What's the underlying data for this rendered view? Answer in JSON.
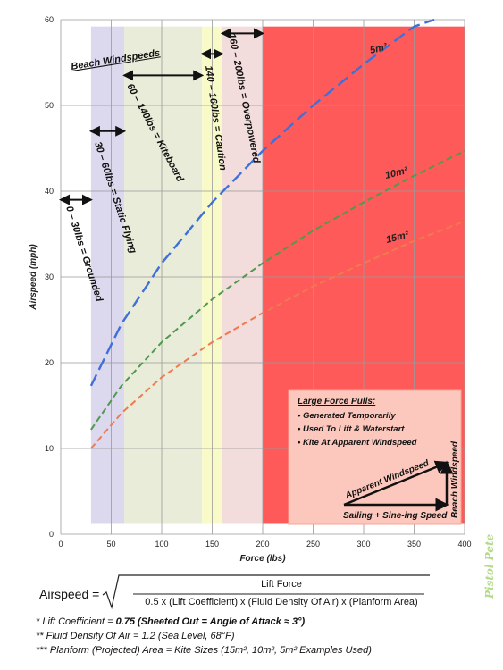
{
  "chart_data": {
    "type": "line",
    "xlabel": "Force (lbs)",
    "ylabel": "Airspeed (mph)",
    "xlim": [
      0,
      400
    ],
    "ylim": [
      0,
      60
    ],
    "xticks": [
      0,
      50,
      100,
      150,
      200,
      250,
      300,
      350,
      400
    ],
    "yticks": [
      0,
      10,
      20,
      30,
      40,
      50,
      60
    ],
    "grid": true,
    "series": [
      {
        "name": "5m²",
        "color": "#3f6fd8",
        "x": [
          30,
          60,
          100,
          150,
          200,
          250,
          300,
          350,
          370
        ],
        "y": [
          17.3,
          24.5,
          31.6,
          38.7,
          44.7,
          50.0,
          54.8,
          59.2,
          60.0
        ]
      },
      {
        "name": "10m²",
        "color": "#4f9a4f",
        "x": [
          30,
          60,
          100,
          150,
          200,
          250,
          300,
          350,
          400
        ],
        "y": [
          12.2,
          17.3,
          22.4,
          27.4,
          31.6,
          35.4,
          38.7,
          41.8,
          44.7
        ]
      },
      {
        "name": "15m²",
        "color": "#f07a50",
        "x": [
          30,
          60,
          100,
          150,
          200,
          250,
          300,
          350,
          400
        ],
        "y": [
          10.0,
          14.1,
          18.3,
          22.4,
          25.8,
          28.9,
          31.6,
          34.2,
          36.5
        ]
      }
    ],
    "zones": [
      {
        "label": "0 – 30lbs = Grounded",
        "x_min": 0,
        "x_max": 30,
        "color": ""
      },
      {
        "label": "30 – 60lbs = Static Flying",
        "x_min": 30,
        "x_max": 63,
        "color": "#dcd8ee"
      },
      {
        "label": "60 – 140lbs = Kiteboard",
        "x_min": 63,
        "x_max": 140,
        "color": "#e9ecd8"
      },
      {
        "label": "140 – 160lbs = Caution",
        "x_min": 140,
        "x_max": 160,
        "color": "#f8fbc8"
      },
      {
        "label": "160 – 200lbs = Overpowered",
        "x_min": 160,
        "x_max": 200,
        "color": "#f3dcdc"
      },
      {
        "label": "",
        "x_min": 200,
        "x_max": 400,
        "color": "#ff5a5a"
      }
    ],
    "zone_group_title": "Beach Windspeeds",
    "zone_y_min": 1.2,
    "zone_y_max": 59.2
  },
  "info_box": {
    "title": "Large Force Pulls:",
    "items": [
      "• Generated Temporarily",
      "• Used To Lift & Waterstart",
      "• Kite At Apparent Windspeed"
    ],
    "vector_labels": {
      "apparent": "Apparent Windspeed",
      "beach": "Beach Windspeed",
      "sailing": "Sailing + Sine-ing Speed"
    },
    "color": "#fcc8bd"
  },
  "formula": {
    "lhs": "Airspeed =",
    "numerator": "Lift Force",
    "denominator": "0.5 x (Lift Coefficient) x (Fluid Density Of Air) x (Planform Area)"
  },
  "footnotes": {
    "f1_prefix": "* Lift Coefficient = ",
    "f1_bold": "0.75 (Sheeted Out = Angle of Attack ≈ 3°)",
    "f2": "** Fluid Density Of Air = 1.2 (Sea Level, 68°F)",
    "f3": "*** Planform (Projected) Area = Kite Sizes (15m², 10m², 5m² Examples Used)"
  },
  "watermark": "Pistol Pete"
}
